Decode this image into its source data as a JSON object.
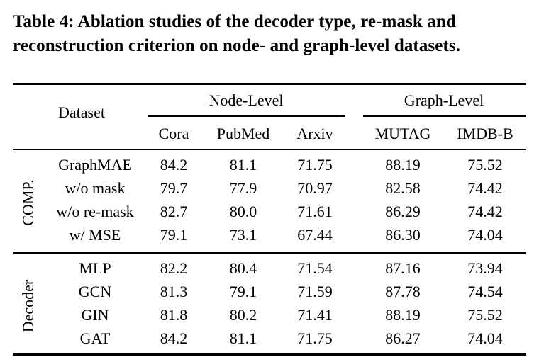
{
  "caption": "Table 4: Ablation studies of the decoder type, re-mask and reconstruction criterion on node- and graph-level datasets.",
  "header": {
    "dataset_label": "Dataset",
    "node_level": "Node-Level",
    "graph_level": "Graph-Level",
    "columns": [
      "Cora",
      "PubMed",
      "Arxiv",
      "MUTAG",
      "IMDB-B"
    ]
  },
  "groups": [
    {
      "label": "COMP.",
      "rows": [
        {
          "name": "GraphMAE",
          "values": [
            "84.2",
            "81.1",
            "71.75",
            "88.19",
            "75.52"
          ]
        },
        {
          "name": "w/o mask",
          "values": [
            "79.7",
            "77.9",
            "70.97",
            "82.58",
            "74.42"
          ]
        },
        {
          "name": "w/o re-mask",
          "values": [
            "82.7",
            "80.0",
            "71.61",
            "86.29",
            "74.42"
          ]
        },
        {
          "name": "w/ MSE",
          "values": [
            "79.1",
            "73.1",
            "67.44",
            "86.30",
            "74.04"
          ]
        }
      ]
    },
    {
      "label": "Decoder",
      "rows": [
        {
          "name": "MLP",
          "values": [
            "82.2",
            "80.4",
            "71.54",
            "87.16",
            "73.94"
          ]
        },
        {
          "name": "GCN",
          "values": [
            "81.3",
            "79.1",
            "71.59",
            "87.78",
            "74.54"
          ]
        },
        {
          "name": "GIN",
          "values": [
            "81.8",
            "80.2",
            "71.41",
            "88.19",
            "75.52"
          ]
        },
        {
          "name": "GAT",
          "values": [
            "84.2",
            "81.1",
            "71.75",
            "86.27",
            "74.04"
          ]
        }
      ]
    }
  ],
  "chart_data": {
    "type": "table",
    "title": "Table 4: Ablation studies of the decoder type, re-mask and reconstruction criterion on node- and graph-level datasets.",
    "column_groups": [
      {
        "name": "Node-Level",
        "columns": [
          "Cora",
          "PubMed",
          "Arxiv"
        ]
      },
      {
        "name": "Graph-Level",
        "columns": [
          "MUTAG",
          "IMDB-B"
        ]
      }
    ],
    "columns": [
      "Cora",
      "PubMed",
      "Arxiv",
      "MUTAG",
      "IMDB-B"
    ],
    "rows": [
      {
        "group": "COMP.",
        "name": "GraphMAE",
        "values": [
          84.2,
          81.1,
          71.75,
          88.19,
          75.52
        ]
      },
      {
        "group": "COMP.",
        "name": "w/o mask",
        "values": [
          79.7,
          77.9,
          70.97,
          82.58,
          74.42
        ]
      },
      {
        "group": "COMP.",
        "name": "w/o re-mask",
        "values": [
          82.7,
          80.0,
          71.61,
          86.29,
          74.42
        ]
      },
      {
        "group": "COMP.",
        "name": "w/ MSE",
        "values": [
          79.1,
          73.1,
          67.44,
          86.3,
          74.04
        ]
      },
      {
        "group": "Decoder",
        "name": "MLP",
        "values": [
          82.2,
          80.4,
          71.54,
          87.16,
          73.94
        ]
      },
      {
        "group": "Decoder",
        "name": "GCN",
        "values": [
          81.3,
          79.1,
          71.59,
          87.78,
          74.54
        ]
      },
      {
        "group": "Decoder",
        "name": "GIN",
        "values": [
          81.8,
          80.2,
          71.41,
          88.19,
          75.52
        ]
      },
      {
        "group": "Decoder",
        "name": "GAT",
        "values": [
          84.2,
          81.1,
          71.75,
          86.27,
          74.04
        ]
      }
    ]
  }
}
